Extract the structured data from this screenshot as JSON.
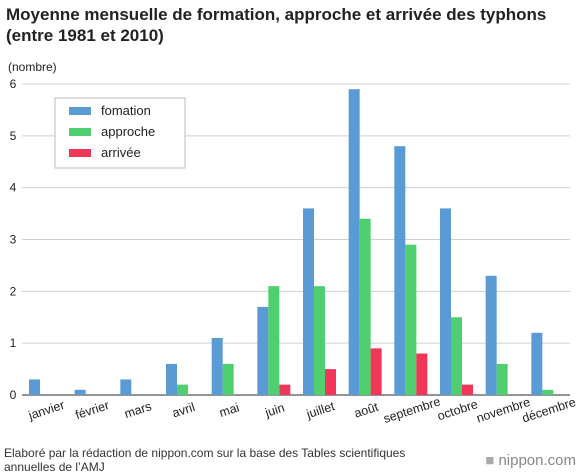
{
  "header": {
    "title_line1": "Moyenne mensuelle de formation, approche et arrivée des typhons",
    "title_line2": "(entre 1981 et 2010)"
  },
  "footer": {
    "source_line1": "Elaboré par la rédaction de nippon.com sur la base des Tables scientifiques",
    "source_line2": "annuelles de l’AMJ",
    "brand": "nippon.com",
    "brand_dot": "■"
  },
  "chart_data": {
    "type": "bar",
    "ylabel": "(nombre)",
    "ylim": [
      0,
      6
    ],
    "yticks": [
      0,
      1,
      2,
      3,
      4,
      5,
      6
    ],
    "grid": true,
    "legend_position": "top-left",
    "categories": [
      "janvier",
      "février",
      "mars",
      "avril",
      "mai",
      "juin",
      "juillet",
      "août",
      "septembre",
      "octobre",
      "novembre",
      "décembre"
    ],
    "series": [
      {
        "name": "fomation",
        "color": "#5b9bd5",
        "values": [
          0.3,
          0.1,
          0.3,
          0.6,
          1.1,
          1.7,
          3.6,
          5.9,
          4.8,
          3.6,
          2.3,
          1.2
        ]
      },
      {
        "name": "approche",
        "color": "#4fcf70",
        "values": [
          0,
          0,
          0,
          0.2,
          0.6,
          2.1,
          2.1,
          3.4,
          2.9,
          1.5,
          0.6,
          0.1
        ]
      },
      {
        "name": "arrivée",
        "color": "#f0375a",
        "values": [
          0,
          0,
          0,
          0,
          0,
          0.2,
          0.5,
          0.9,
          0.8,
          0.2,
          0,
          0
        ]
      }
    ]
  }
}
